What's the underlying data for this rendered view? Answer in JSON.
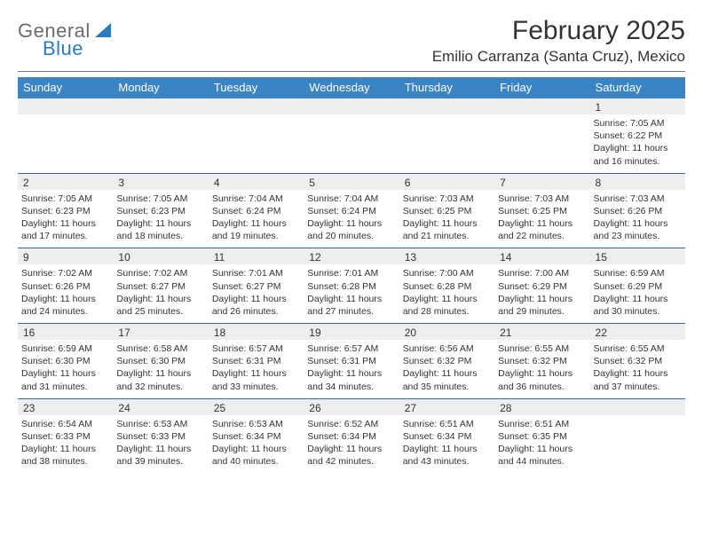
{
  "logo": {
    "word1": "General",
    "word2": "Blue"
  },
  "title": "February 2025",
  "location": "Emilio Carranza (Santa Cruz), Mexico",
  "colors": {
    "header_bg": "#3b84c4",
    "header_text": "#ffffff",
    "divider": "#7a7a7a",
    "week_border": "#3b6a93",
    "daynum_band": "#eeeeee",
    "text": "#333333",
    "logo_blue": "#2b7bbf",
    "logo_gray": "#6b6b6b",
    "background": "#ffffff"
  },
  "typography": {
    "title_fontsize": 30,
    "location_fontsize": 17,
    "dayheader_fontsize": 13,
    "cell_fontsize": 10.5,
    "daynum_fontsize": 12
  },
  "day_headers": [
    "Sunday",
    "Monday",
    "Tuesday",
    "Wednesday",
    "Thursday",
    "Friday",
    "Saturday"
  ],
  "weeks": [
    [
      {
        "day": "",
        "sunrise": "",
        "sunset": "",
        "daylight": ""
      },
      {
        "day": "",
        "sunrise": "",
        "sunset": "",
        "daylight": ""
      },
      {
        "day": "",
        "sunrise": "",
        "sunset": "",
        "daylight": ""
      },
      {
        "day": "",
        "sunrise": "",
        "sunset": "",
        "daylight": ""
      },
      {
        "day": "",
        "sunrise": "",
        "sunset": "",
        "daylight": ""
      },
      {
        "day": "",
        "sunrise": "",
        "sunset": "",
        "daylight": ""
      },
      {
        "day": "1",
        "sunrise": "Sunrise: 7:05 AM",
        "sunset": "Sunset: 6:22 PM",
        "daylight": "Daylight: 11 hours and 16 minutes."
      }
    ],
    [
      {
        "day": "2",
        "sunrise": "Sunrise: 7:05 AM",
        "sunset": "Sunset: 6:23 PM",
        "daylight": "Daylight: 11 hours and 17 minutes."
      },
      {
        "day": "3",
        "sunrise": "Sunrise: 7:05 AM",
        "sunset": "Sunset: 6:23 PM",
        "daylight": "Daylight: 11 hours and 18 minutes."
      },
      {
        "day": "4",
        "sunrise": "Sunrise: 7:04 AM",
        "sunset": "Sunset: 6:24 PM",
        "daylight": "Daylight: 11 hours and 19 minutes."
      },
      {
        "day": "5",
        "sunrise": "Sunrise: 7:04 AM",
        "sunset": "Sunset: 6:24 PM",
        "daylight": "Daylight: 11 hours and 20 minutes."
      },
      {
        "day": "6",
        "sunrise": "Sunrise: 7:03 AM",
        "sunset": "Sunset: 6:25 PM",
        "daylight": "Daylight: 11 hours and 21 minutes."
      },
      {
        "day": "7",
        "sunrise": "Sunrise: 7:03 AM",
        "sunset": "Sunset: 6:25 PM",
        "daylight": "Daylight: 11 hours and 22 minutes."
      },
      {
        "day": "8",
        "sunrise": "Sunrise: 7:03 AM",
        "sunset": "Sunset: 6:26 PM",
        "daylight": "Daylight: 11 hours and 23 minutes."
      }
    ],
    [
      {
        "day": "9",
        "sunrise": "Sunrise: 7:02 AM",
        "sunset": "Sunset: 6:26 PM",
        "daylight": "Daylight: 11 hours and 24 minutes."
      },
      {
        "day": "10",
        "sunrise": "Sunrise: 7:02 AM",
        "sunset": "Sunset: 6:27 PM",
        "daylight": "Daylight: 11 hours and 25 minutes."
      },
      {
        "day": "11",
        "sunrise": "Sunrise: 7:01 AM",
        "sunset": "Sunset: 6:27 PM",
        "daylight": "Daylight: 11 hours and 26 minutes."
      },
      {
        "day": "12",
        "sunrise": "Sunrise: 7:01 AM",
        "sunset": "Sunset: 6:28 PM",
        "daylight": "Daylight: 11 hours and 27 minutes."
      },
      {
        "day": "13",
        "sunrise": "Sunrise: 7:00 AM",
        "sunset": "Sunset: 6:28 PM",
        "daylight": "Daylight: 11 hours and 28 minutes."
      },
      {
        "day": "14",
        "sunrise": "Sunrise: 7:00 AM",
        "sunset": "Sunset: 6:29 PM",
        "daylight": "Daylight: 11 hours and 29 minutes."
      },
      {
        "day": "15",
        "sunrise": "Sunrise: 6:59 AM",
        "sunset": "Sunset: 6:29 PM",
        "daylight": "Daylight: 11 hours and 30 minutes."
      }
    ],
    [
      {
        "day": "16",
        "sunrise": "Sunrise: 6:59 AM",
        "sunset": "Sunset: 6:30 PM",
        "daylight": "Daylight: 11 hours and 31 minutes."
      },
      {
        "day": "17",
        "sunrise": "Sunrise: 6:58 AM",
        "sunset": "Sunset: 6:30 PM",
        "daylight": "Daylight: 11 hours and 32 minutes."
      },
      {
        "day": "18",
        "sunrise": "Sunrise: 6:57 AM",
        "sunset": "Sunset: 6:31 PM",
        "daylight": "Daylight: 11 hours and 33 minutes."
      },
      {
        "day": "19",
        "sunrise": "Sunrise: 6:57 AM",
        "sunset": "Sunset: 6:31 PM",
        "daylight": "Daylight: 11 hours and 34 minutes."
      },
      {
        "day": "20",
        "sunrise": "Sunrise: 6:56 AM",
        "sunset": "Sunset: 6:32 PM",
        "daylight": "Daylight: 11 hours and 35 minutes."
      },
      {
        "day": "21",
        "sunrise": "Sunrise: 6:55 AM",
        "sunset": "Sunset: 6:32 PM",
        "daylight": "Daylight: 11 hours and 36 minutes."
      },
      {
        "day": "22",
        "sunrise": "Sunrise: 6:55 AM",
        "sunset": "Sunset: 6:32 PM",
        "daylight": "Daylight: 11 hours and 37 minutes."
      }
    ],
    [
      {
        "day": "23",
        "sunrise": "Sunrise: 6:54 AM",
        "sunset": "Sunset: 6:33 PM",
        "daylight": "Daylight: 11 hours and 38 minutes."
      },
      {
        "day": "24",
        "sunrise": "Sunrise: 6:53 AM",
        "sunset": "Sunset: 6:33 PM",
        "daylight": "Daylight: 11 hours and 39 minutes."
      },
      {
        "day": "25",
        "sunrise": "Sunrise: 6:53 AM",
        "sunset": "Sunset: 6:34 PM",
        "daylight": "Daylight: 11 hours and 40 minutes."
      },
      {
        "day": "26",
        "sunrise": "Sunrise: 6:52 AM",
        "sunset": "Sunset: 6:34 PM",
        "daylight": "Daylight: 11 hours and 42 minutes."
      },
      {
        "day": "27",
        "sunrise": "Sunrise: 6:51 AM",
        "sunset": "Sunset: 6:34 PM",
        "daylight": "Daylight: 11 hours and 43 minutes."
      },
      {
        "day": "28",
        "sunrise": "Sunrise: 6:51 AM",
        "sunset": "Sunset: 6:35 PM",
        "daylight": "Daylight: 11 hours and 44 minutes."
      },
      {
        "day": "",
        "sunrise": "",
        "sunset": "",
        "daylight": ""
      }
    ]
  ]
}
